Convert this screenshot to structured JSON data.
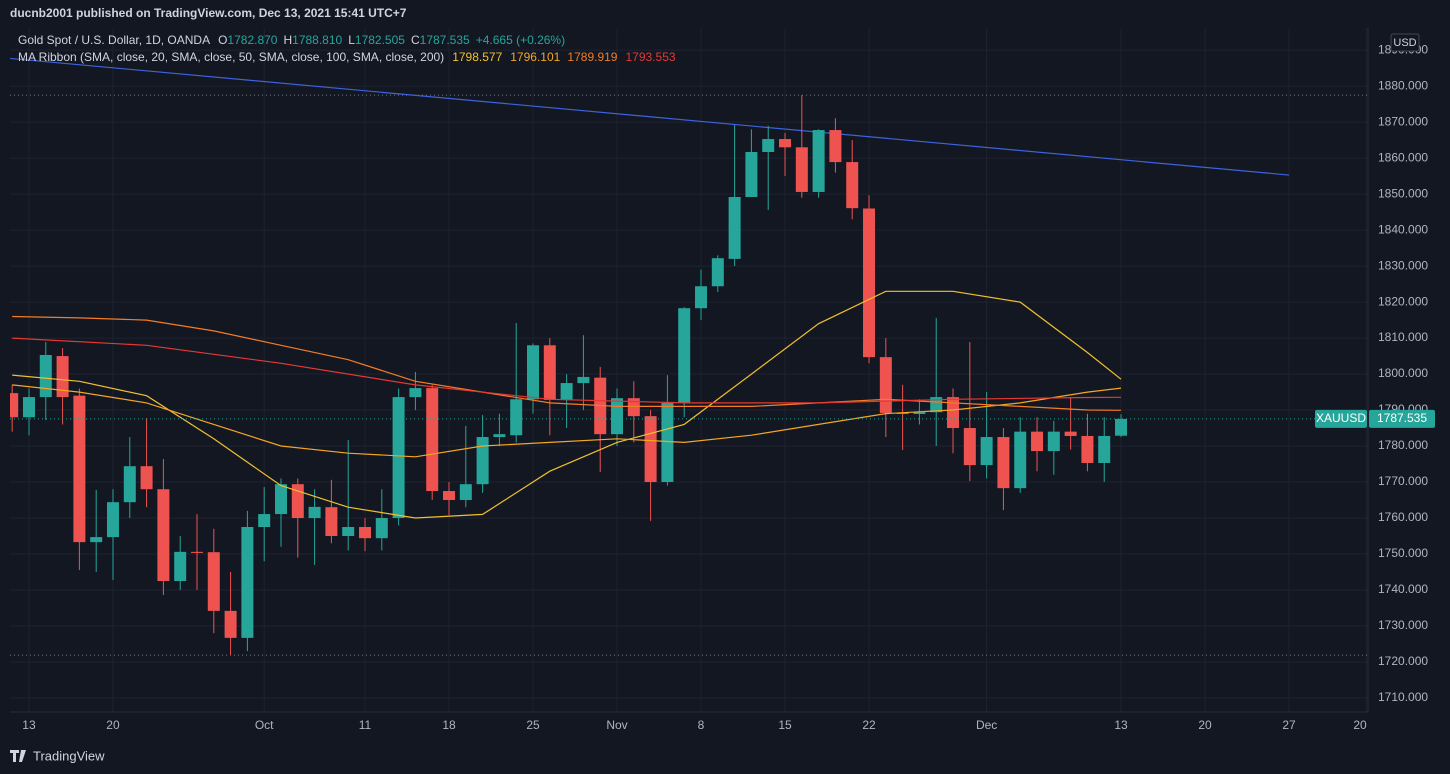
{
  "header": {
    "publisher": "ducnb2001 published on TradingView.com, Dec 13, 2021 15:41 UTC+7"
  },
  "footer": {
    "brand": "TradingView"
  },
  "chart_data": {
    "type": "candlestick",
    "title": "Gold Spot / U.S. Dollar, 1D, OANDA",
    "ohlc_legend": [
      {
        "key": "O",
        "label": "1782.870"
      },
      {
        "key": "H",
        "label": "1788.810"
      },
      {
        "key": "L",
        "label": "1782.505"
      },
      {
        "key": "C",
        "label": "1787.535"
      }
    ],
    "change_label": "+4.665 (+0.26%)",
    "indicator": "MA Ribbon (SMA, close, 20, SMA, close, 50, SMA, close, 100, SMA, close, 200)",
    "up_color": "#26a69a",
    "down_color": "#ef5350",
    "open": [
      1794.7,
      1788,
      1793.6,
      1805,
      1794,
      1753.3,
      1754.7,
      1764.4,
      1774.4,
      1768,
      1742.5,
      1750.6,
      1750.5,
      1734.2,
      1726.7,
      1757.5,
      1761.1,
      1769.4,
      1760,
      1763,
      1755,
      1757.5,
      1754.4,
      1760,
      1793.6,
      1796.1,
      1767.5,
      1765,
      1769.4,
      1782.5,
      1783,
      1793,
      1808,
      1792.8,
      1797.5,
      1799,
      1783.3,
      1793.3,
      1788.3,
      1770,
      1792,
      1818.3,
      1824.4,
      1832,
      1849.2,
      1861.7,
      1865.3,
      1863,
      1850.6,
      1867.8,
      1858.9,
      1846,
      1804.7,
      1789.2,
      1788.9,
      1789.4,
      1793.6,
      1785,
      1774.7,
      1782.5,
      1768.3,
      1784,
      1778.6,
      1784,
      1782.8,
      1775.3,
      1782.87
    ],
    "high": [
      1797,
      1796,
      1808.9,
      1807.2,
      1796,
      1767.8,
      1768,
      1782.5,
      1787.8,
      1776.4,
      1755,
      1761.1,
      1757,
      1745,
      1762,
      1768.6,
      1771,
      1771,
      1768,
      1770.6,
      1781.7,
      1760,
      1768,
      1796,
      1800.6,
      1797,
      1770,
      1785.6,
      1788.6,
      1789,
      1814.2,
      1808.5,
      1810,
      1800,
      1810.8,
      1802,
      1796,
      1798,
      1790,
      1799.7,
      1818.6,
      1829,
      1833,
      1869.2,
      1868,
      1869,
      1867,
      1877.5,
      1868,
      1871.1,
      1865,
      1849.7,
      1810,
      1797,
      1793,
      1815.6,
      1796,
      1808.9,
      1795,
      1785,
      1788,
      1788,
      1787,
      1793.6,
      1789,
      1788,
      1788.81
    ],
    "low": [
      1784,
      1783,
      1787.2,
      1786,
      1745.6,
      1745,
      1742.8,
      1760,
      1763,
      1738.6,
      1740,
      1740,
      1728,
      1721.9,
      1723,
      1748,
      1752,
      1749,
      1747,
      1753,
      1751,
      1750.8,
      1751,
      1758,
      1790,
      1765,
      1760.8,
      1763,
      1767,
      1780,
      1781,
      1789,
      1783,
      1785,
      1790,
      1772.8,
      1780,
      1781,
      1759.2,
      1769,
      1788,
      1815,
      1822.8,
      1830,
      1850,
      1845.6,
      1855,
      1849,
      1849,
      1856,
      1843,
      1803,
      1782.5,
      1778.9,
      1786,
      1780,
      1778,
      1770.3,
      1771,
      1762.2,
      1767,
      1773,
      1772,
      1779,
      1773,
      1770,
      1782.505
    ],
    "close": [
      1788,
      1793.6,
      1805.3,
      1793.6,
      1753.3,
      1754.7,
      1764.4,
      1774.4,
      1768,
      1742.5,
      1750.6,
      1750.3,
      1734.2,
      1726.7,
      1757.5,
      1761.1,
      1769.4,
      1760,
      1763.1,
      1755,
      1757.5,
      1754.4,
      1760,
      1793.6,
      1796.1,
      1767.5,
      1765,
      1769.4,
      1782.5,
      1783.3,
      1793,
      1808,
      1792.8,
      1797.5,
      1799.2,
      1783.3,
      1793.3,
      1788.3,
      1770,
      1792,
      1818.3,
      1824.4,
      1832.2,
      1849.2,
      1861.7,
      1865.3,
      1863,
      1850.6,
      1867.8,
      1858.9,
      1846.1,
      1804.7,
      1789.2,
      1788.9,
      1789.4,
      1793.6,
      1785,
      1774.7,
      1782.5,
      1768.3,
      1784,
      1778.6,
      1784,
      1782.8,
      1775.3,
      1782.8,
      1787.535
    ],
    "series": [
      {
        "color": "#f0c030",
        "value_label": "1798.577",
        "x": [
          0,
          4,
          8,
          12,
          16,
          20,
          24,
          28,
          32,
          36,
          40,
          44,
          48,
          52,
          56,
          60,
          64,
          66
        ],
        "values": [
          1799.7,
          1798,
          1794,
          1782,
          1769,
          1763,
          1760,
          1761,
          1773,
          1781,
          1786,
          1800,
          1814,
          1823,
          1823,
          1820,
          1806,
          1798.577
        ]
      },
      {
        "color": "#f5a623",
        "value_label": "1796.101",
        "x": [
          0,
          4,
          8,
          12,
          16,
          20,
          24,
          28,
          32,
          36,
          40,
          44,
          48,
          52,
          56,
          60,
          64,
          66
        ],
        "values": [
          1797,
          1795,
          1792,
          1786,
          1780,
          1778,
          1777,
          1780,
          1781,
          1782,
          1781,
          1783,
          1786,
          1789,
          1790,
          1792,
          1795,
          1796.101
        ]
      },
      {
        "color": "#f57c24",
        "value_label": "1789.919",
        "x": [
          0,
          4,
          8,
          12,
          16,
          20,
          24,
          28,
          32,
          36,
          40,
          44,
          48,
          52,
          56,
          60,
          64,
          66
        ],
        "values": [
          1816,
          1815.6,
          1815,
          1812,
          1808,
          1804,
          1798,
          1795,
          1792,
          1791,
          1791,
          1791,
          1792,
          1793,
          1792,
          1791,
          1790,
          1789.919
        ]
      },
      {
        "color": "#e53935",
        "value_label": "1793.553",
        "x": [
          0,
          8,
          16,
          24,
          32,
          40,
          48,
          56,
          64,
          66
        ],
        "values": [
          1810,
          1808,
          1803,
          1797,
          1793,
          1792,
          1792,
          1793,
          1793.5,
          1793.553
        ]
      }
    ],
    "trendline": {
      "color": "#3d63dd",
      "x": [
        0,
        76
      ],
      "values": [
        1887.7,
        1855.3
      ]
    },
    "price_lines": [
      1877.5,
      1721.9
    ],
    "last_price": {
      "symbol": "XAUUSD",
      "label": "1787.535"
    },
    "currency": "USD",
    "xlim": [
      -0.13,
      80.7
    ],
    "xticks": [
      {
        "value": 1,
        "label": "13"
      },
      {
        "value": 6,
        "label": "20"
      },
      {
        "value": 15,
        "label": "Oct"
      },
      {
        "value": 21,
        "label": "11"
      },
      {
        "value": 26,
        "label": "18"
      },
      {
        "value": 31,
        "label": "25"
      },
      {
        "value": 36,
        "label": "Nov"
      },
      {
        "value": 41,
        "label": "8"
      },
      {
        "value": 46,
        "label": "15"
      },
      {
        "value": 51,
        "label": "22"
      },
      {
        "value": 58,
        "label": "Dec"
      },
      {
        "value": 66,
        "label": "13"
      },
      {
        "value": 71,
        "label": "20"
      },
      {
        "value": 76,
        "label": "27"
      },
      {
        "value": 80.6,
        "label": "20"
      }
    ],
    "ylim": [
      1706.1,
      1895.6
    ],
    "yticks": [
      {
        "value": 1710,
        "label": "1710.000"
      },
      {
        "value": 1720,
        "label": "1720.000"
      },
      {
        "value": 1730,
        "label": "1730.000"
      },
      {
        "value": 1740,
        "label": "1740.000"
      },
      {
        "value": 1750,
        "label": "1750.000"
      },
      {
        "value": 1760,
        "label": "1760.000"
      },
      {
        "value": 1770,
        "label": "1770.000"
      },
      {
        "value": 1780,
        "label": "1780.000"
      },
      {
        "value": 1790,
        "label": "1790.000"
      },
      {
        "value": 1800,
        "label": "1800.000"
      },
      {
        "value": 1810,
        "label": "1810.000"
      },
      {
        "value": 1820,
        "label": "1820.000"
      },
      {
        "value": 1830,
        "label": "1830.000"
      },
      {
        "value": 1840,
        "label": "1840.000"
      },
      {
        "value": 1850,
        "label": "1850.000"
      },
      {
        "value": 1860,
        "label": "1860.000"
      },
      {
        "value": 1870,
        "label": "1870.000"
      },
      {
        "value": 1880,
        "label": "1880.000"
      },
      {
        "value": 1890,
        "label": "1890.000"
      }
    ],
    "grid": true
  }
}
